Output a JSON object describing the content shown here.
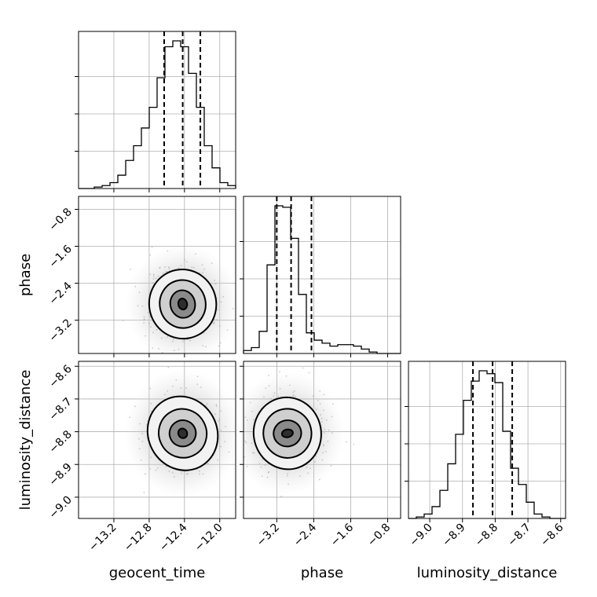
{
  "chart_data": {
    "type": "corner",
    "grid": true,
    "parameters": [
      "geocent_time",
      "phase",
      "luminosity_distance"
    ],
    "axis_labels": {
      "x": [
        "geocent_time",
        "phase",
        "luminosity_distance"
      ],
      "y": [
        "",
        "phase",
        "luminosity_distance"
      ]
    },
    "ranges": {
      "geocent_time": [
        -13.6,
        -11.82
      ],
      "phase": [
        -3.92,
        -0.52
      ],
      "luminosity_distance": [
        -9.065,
        -8.585
      ]
    },
    "ticks": {
      "geocent_time": {
        "values": [
          -13.2,
          -12.8,
          -12.4,
          -12.0
        ],
        "labels": [
          "−13.2",
          "−12.8",
          "−12.4",
          "−12.0"
        ]
      },
      "phase": {
        "values": [
          -3.2,
          -2.4,
          -1.6,
          -0.8
        ],
        "labels": [
          "−3.2",
          "−2.4",
          "−1.6",
          "−0.8"
        ]
      },
      "luminosity_distance": {
        "values": [
          -9.0,
          -8.9,
          -8.8,
          -8.7,
          -8.6
        ],
        "labels": [
          "−9.0",
          "−8.9",
          "−8.8",
          "−8.7",
          "−8.6"
        ]
      }
    },
    "histograms": [
      {
        "parameter": "geocent_time",
        "bin_range": [
          -13.6,
          -11.82
        ],
        "counts": [
          0,
          0,
          1,
          2,
          4,
          9,
          19,
          29,
          41,
          55,
          75,
          96,
          100,
          96,
          78,
          55,
          29,
          14,
          4,
          2
        ],
        "quantiles": [
          -12.63,
          -12.42,
          -12.22
        ]
      },
      {
        "parameter": "phase",
        "bin_range": [
          -3.92,
          -0.52
        ],
        "counts": [
          2,
          4,
          15,
          60,
          100,
          99,
          78,
          40,
          14,
          9,
          7,
          5,
          6,
          6,
          5,
          3,
          1,
          0,
          0,
          0
        ],
        "quantiles": [
          -3.2,
          -2.89,
          -2.45
        ]
      },
      {
        "parameter": "luminosity_distance",
        "bin_range": [
          -9.065,
          -8.585
        ],
        "counts": [
          0,
          1,
          3,
          8,
          19,
          37,
          57,
          80,
          93,
          100,
          98,
          92,
          59,
          34,
          23,
          11,
          3,
          1,
          0,
          0
        ],
        "quantiles": [
          -8.868,
          -8.808,
          -8.748
        ]
      }
    ],
    "density_panels": [
      {
        "x": "geocent_time",
        "y": "phase",
        "center": [
          -12.42,
          -2.85
        ],
        "contour_half_widths": [
          [
            0.05,
            0.12
          ],
          [
            0.14,
            0.3
          ],
          [
            0.26,
            0.52
          ],
          [
            0.38,
            0.75
          ]
        ]
      },
      {
        "x": "geocent_time",
        "y": "luminosity_distance",
        "center": [
          -12.42,
          -8.805
        ],
        "contour_half_widths": [
          [
            0.05,
            0.015
          ],
          [
            0.15,
            0.04
          ],
          [
            0.27,
            0.075
          ],
          [
            0.39,
            0.115
          ]
        ]
      },
      {
        "x": "phase",
        "y": "luminosity_distance",
        "center": [
          -2.97,
          -8.805
        ],
        "contour_half_widths": [
          [
            0.12,
            0.012
          ],
          [
            0.3,
            0.04
          ],
          [
            0.52,
            0.075
          ],
          [
            0.73,
            0.11
          ]
        ]
      }
    ]
  }
}
